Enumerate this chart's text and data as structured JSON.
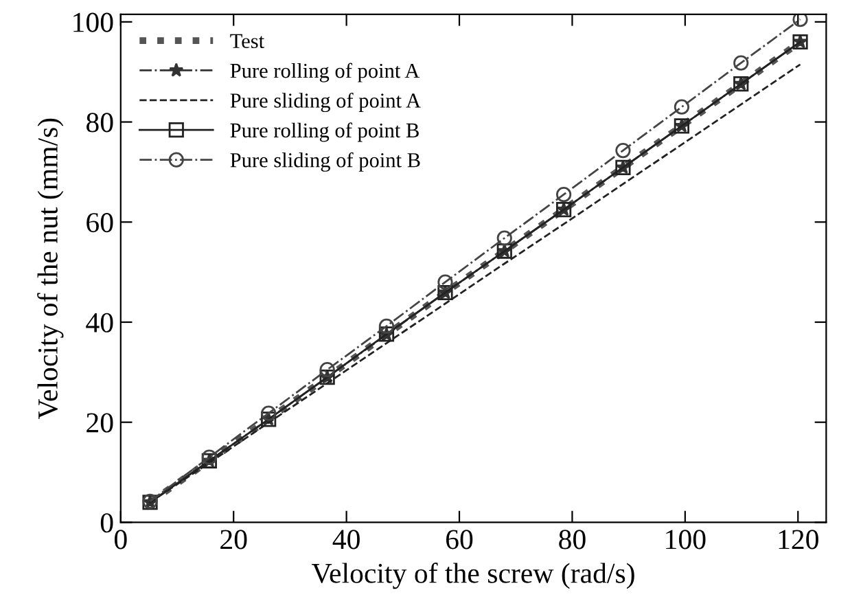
{
  "chart_data": {
    "type": "line",
    "xlabel": "Velocity of the screw (rad/s)",
    "ylabel": "Velocity of the nut (mm/s)",
    "x": [
      5.2,
      15.7,
      26.2,
      36.6,
      47.1,
      57.5,
      68.0,
      78.5,
      89.0,
      99.4,
      109.9,
      120.4
    ],
    "xlim": [
      0,
      125
    ],
    "xticks": [
      0,
      20,
      40,
      60,
      80,
      100,
      120
    ],
    "ylim": [
      0,
      101.5
    ],
    "yticks": [
      0,
      20,
      40,
      60,
      80,
      100
    ],
    "grid": false,
    "legend": "top left",
    "series": [
      {
        "name": "Test",
        "color": "#555555",
        "line_style": "dotted",
        "marker": "none",
        "values": [
          4.0,
          12.3,
          20.6,
          29.0,
          37.5,
          45.9,
          54.2,
          62.5,
          70.9,
          79.2,
          87.6,
          96.0
        ]
      },
      {
        "name": "Pure rolling of point A",
        "color": "#333333",
        "line_style": "dashdot",
        "marker": "star",
        "values": [
          4.0,
          12.3,
          20.6,
          29.0,
          37.5,
          45.9,
          54.2,
          62.5,
          70.9,
          79.2,
          87.6,
          96.0
        ]
      },
      {
        "name": "Pure sliding of point A",
        "color": "#222222",
        "line_style": "dashed",
        "marker": "none",
        "values": [
          4.0,
          11.9,
          19.9,
          27.8,
          35.8,
          43.7,
          51.7,
          59.6,
          67.6,
          75.5,
          83.5,
          91.5
        ]
      },
      {
        "name": "Pure rolling of point B",
        "color": "#222222",
        "line_style": "solid",
        "marker": "square",
        "values": [
          4.0,
          12.3,
          20.6,
          29.0,
          37.6,
          45.9,
          54.2,
          62.5,
          70.9,
          79.2,
          87.6,
          96.0
        ]
      },
      {
        "name": "Pure sliding of point B",
        "color": "#444444",
        "line_style": "dashdot",
        "marker": "circle",
        "values": [
          4.2,
          13.0,
          21.8,
          30.5,
          39.2,
          48.0,
          56.8,
          65.5,
          74.3,
          83.0,
          91.8,
          100.5
        ]
      }
    ]
  }
}
